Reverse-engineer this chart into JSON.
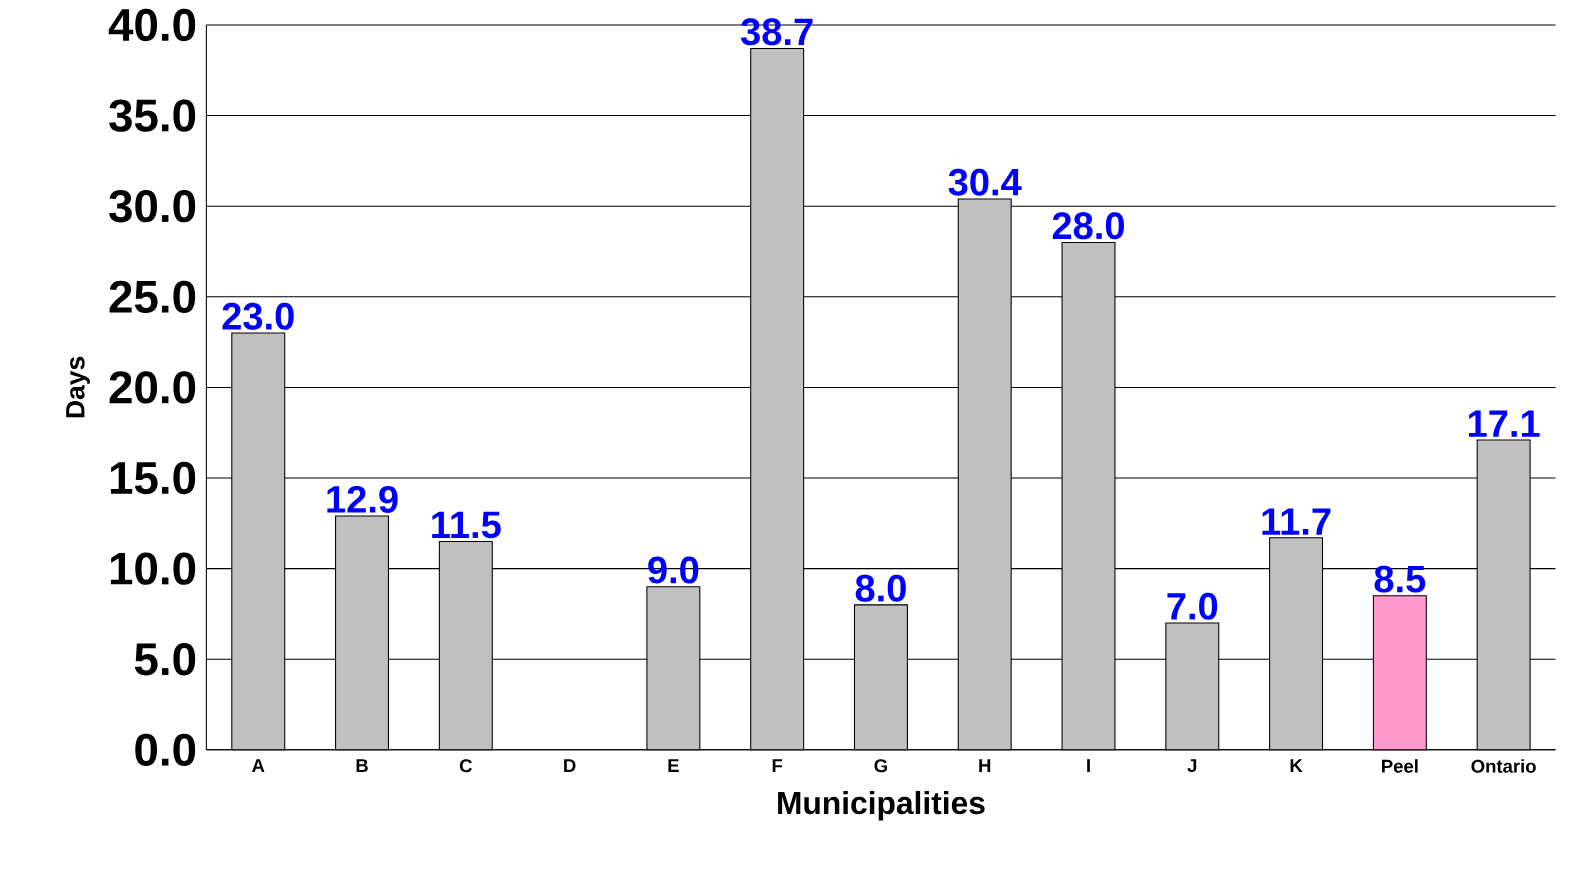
{
  "chart_data": {
    "type": "bar",
    "xlabel": "Municipalities",
    "ylabel": "Days",
    "categories": [
      "A",
      "B",
      "C",
      "D",
      "E",
      "F",
      "G",
      "H",
      "I",
      "J",
      "K",
      "Peel",
      "Ontario"
    ],
    "values": [
      23.0,
      12.9,
      11.5,
      null,
      9.0,
      38.7,
      8.0,
      30.4,
      28.0,
      7.0,
      11.7,
      8.5,
      17.1
    ],
    "value_labels": [
      "23.0",
      "12.9",
      "11.5",
      null,
      "9.0",
      "38.7",
      "8.0",
      "30.4",
      "28.0",
      "7.0",
      "11.7",
      "8.5",
      "17.1"
    ],
    "colors": [
      "#c0c0c0",
      "#c0c0c0",
      "#c0c0c0",
      "#c0c0c0",
      "#c0c0c0",
      "#c0c0c0",
      "#c0c0c0",
      "#c0c0c0",
      "#c0c0c0",
      "#c0c0c0",
      "#c0c0c0",
      "#ff99cc",
      "#c0c0c0"
    ],
    "ylim": [
      0,
      40
    ],
    "yticks": [
      {
        "value": 0,
        "label": "0.0"
      },
      {
        "value": 5,
        "label": "5.0"
      },
      {
        "value": 10,
        "label": "10.0"
      },
      {
        "value": 15,
        "label": "15.0"
      },
      {
        "value": 20,
        "label": "20.0"
      },
      {
        "value": 25,
        "label": "25.0"
      },
      {
        "value": 30,
        "label": "30.0"
      },
      {
        "value": 35,
        "label": "35.0"
      },
      {
        "value": 40,
        "label": "40.0"
      }
    ],
    "grid": "y"
  }
}
